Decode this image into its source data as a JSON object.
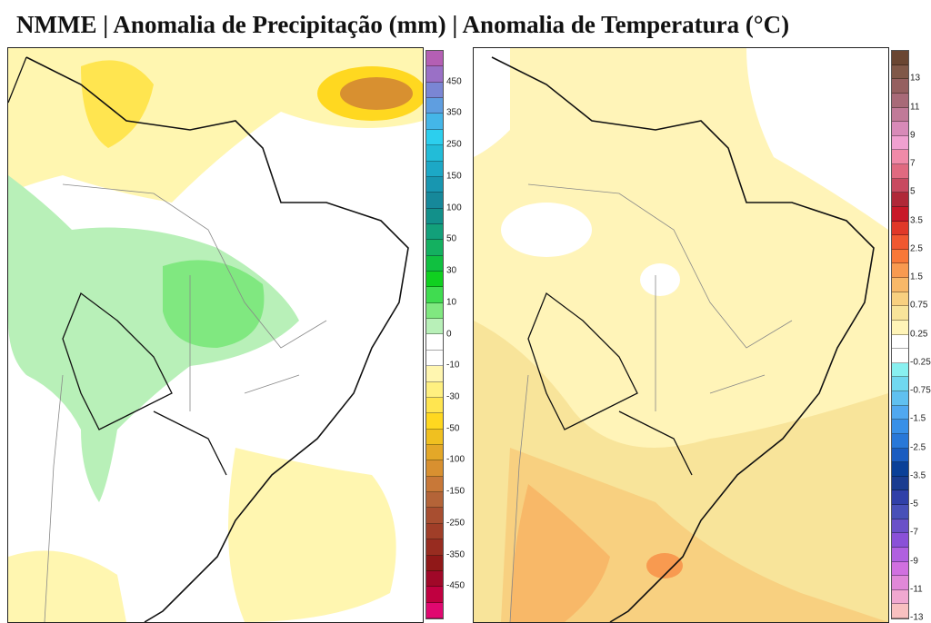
{
  "title": "NMME | Anomalia de Precipitação (mm) | Anomalia de Temperatura (°C)",
  "precipitation_map": {
    "colorbar_labels": [
      "450",
      "350",
      "250",
      "150",
      "100",
      "50",
      "30",
      "10",
      "0",
      "-10",
      "-30",
      "-50",
      "-100",
      "-150",
      "-250",
      "-350",
      "-450"
    ],
    "colorbar_colors": [
      "#b45fb4",
      "#9a70c6",
      "#7a86d4",
      "#5f9ee0",
      "#44b6e8",
      "#2ccfee",
      "#22bcd8",
      "#1ca8c6",
      "#1896b0",
      "#16889a",
      "#12908a",
      "#12a07a",
      "#14b060",
      "#10c040",
      "#10d020",
      "#40dc50",
      "#80e880",
      "#b8f0b8",
      "#ffffff",
      "#ffffff",
      "#fff6b0",
      "#fff080",
      "#ffe550",
      "#ffd820",
      "#f0c020",
      "#e4a828",
      "#d89030",
      "#c87838",
      "#b46438",
      "#a84e30",
      "#a03e28",
      "#982c20",
      "#901818",
      "#a00828",
      "#c00040",
      "#e00870"
    ]
  },
  "temperature_map": {
    "colorbar_labels": [
      "13",
      "11",
      "9",
      "7",
      "5",
      "3.5",
      "2.5",
      "1.5",
      "0.75",
      "0.25",
      "-0.25",
      "-0.75",
      "-1.5",
      "-2.5",
      "-3.5",
      "-5",
      "-7",
      "-9",
      "-11",
      "-13"
    ],
    "colorbar_colors": [
      "#6a4632",
      "#805848",
      "#956060",
      "#a86a78",
      "#c07a98",
      "#d88ab8",
      "#f0a0d0",
      "#f08aa8",
      "#e06a80",
      "#c84a60",
      "#b02838",
      "#c81828",
      "#e03828",
      "#f05830",
      "#f87838",
      "#f89a50",
      "#f8b868",
      "#f8d080",
      "#f8e49a",
      "#fff4b8",
      "#ffffff",
      "#ffffff",
      "#88f0f0",
      "#70d8f0",
      "#60c0f0",
      "#50a8f0",
      "#3890e8",
      "#2878d8",
      "#1a5cc0",
      "#0a4098",
      "#1a3c90",
      "#3040a8",
      "#4850b8",
      "#6a50c8",
      "#8a50d8",
      "#b060e0",
      "#d070e0",
      "#e088d8",
      "#f0a8d0",
      "#f8c0c0"
    ]
  }
}
